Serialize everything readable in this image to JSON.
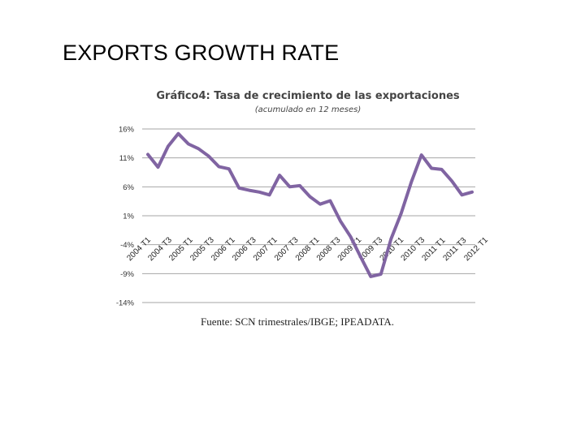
{
  "slide": {
    "title": "EXPORTS GROWTH RATE"
  },
  "chart_data": {
    "type": "line",
    "title": "Gráfico4: Tasa de crecimiento de las exportaciones",
    "subtitle": "(acumulado en 12 meses)",
    "source": "Fuente: SCN trimestrales/IBGE; IPEADATA.",
    "ylim": [
      -14,
      16
    ],
    "yticks": [
      16,
      11,
      6,
      1,
      -4,
      -9,
      -14
    ],
    "ytick_labels": [
      "16%",
      "11%",
      "6%",
      "1%",
      "-4%",
      "-9%",
      "-14%"
    ],
    "xtick_labels": [
      "2004 T1",
      "2004 T3",
      "2005 T1",
      "2005 T3",
      "2006 T1",
      "2006 T3",
      "2007 T1",
      "2007 T3",
      "2008 T1",
      "2008 T3",
      "2009 T1",
      "2009 T3",
      "2010 T1",
      "2010 T3",
      "2011 T1",
      "2011 T3",
      "2012 T1"
    ],
    "series": [
      {
        "name": "Tasa de crecimiento de las exportaciones",
        "color": "#8064A2",
        "values": [
          11.6,
          9.4,
          13.0,
          15.2,
          13.4,
          12.6,
          11.3,
          9.5,
          9.1,
          5.8,
          5.4,
          5.1,
          4.6,
          8.0,
          6.0,
          6.2,
          4.3,
          3.0,
          3.6,
          0.1,
          -2.6,
          -6.1,
          -9.5,
          -9.1,
          -3.0,
          1.4,
          6.8,
          11.5,
          9.2,
          9.0,
          7.0,
          4.6,
          5.1
        ]
      }
    ]
  }
}
